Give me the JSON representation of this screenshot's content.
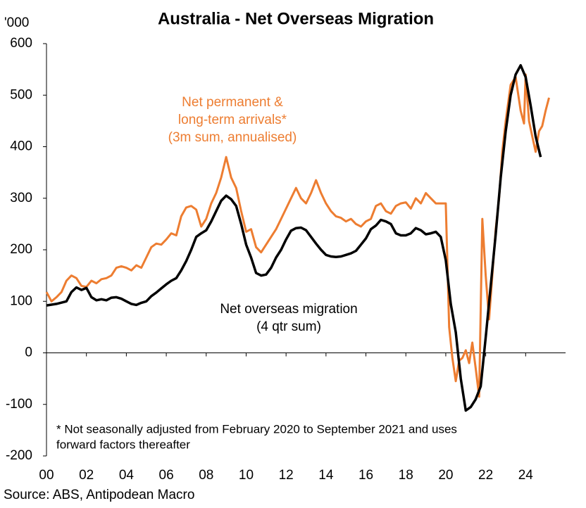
{
  "chart_data": {
    "type": "line",
    "title": "Australia - Net Overseas Migration",
    "y_unit_label": "'000",
    "source": "Source: ABS, Antipodean Macro",
    "footnote": [
      "* Not seasonally adjusted from February 2020 to September 2021 and uses",
      "forward factors thereafter"
    ],
    "annotations": [
      [
        "Net permanent &",
        "long-term arrivals*",
        "(3m sum, annualised)"
      ],
      [
        "Net overseas migration",
        "(4 qtr sum)"
      ]
    ],
    "xlim": [
      2000,
      2026
    ],
    "xticks": [
      {
        "value": 2000,
        "label": "00"
      },
      {
        "value": 2002,
        "label": "02"
      },
      {
        "value": 2004,
        "label": "04"
      },
      {
        "value": 2006,
        "label": "06"
      },
      {
        "value": 2008,
        "label": "08"
      },
      {
        "value": 2010,
        "label": "10"
      },
      {
        "value": 2012,
        "label": "12"
      },
      {
        "value": 2014,
        "label": "14"
      },
      {
        "value": 2016,
        "label": "16"
      },
      {
        "value": 2018,
        "label": "18"
      },
      {
        "value": 2020,
        "label": "20"
      },
      {
        "value": 2022,
        "label": "22"
      },
      {
        "value": 2024,
        "label": "24"
      }
    ],
    "ylim": [
      -200,
      600
    ],
    "yticks": [
      -200,
      -100,
      0,
      100,
      200,
      300,
      400,
      500,
      600
    ],
    "grid": false,
    "series": [
      {
        "name": "Net permanent & long-term arrivals* (3m sum, annualised)",
        "color": "#ed7d31",
        "x": [
          2000,
          2000.25,
          2000.5,
          2000.75,
          2001,
          2001.25,
          2001.5,
          2001.75,
          2002,
          2002.25,
          2002.5,
          2002.75,
          2003,
          2003.25,
          2003.5,
          2003.75,
          2004,
          2004.25,
          2004.5,
          2004.75,
          2005,
          2005.25,
          2005.5,
          2005.75,
          2006,
          2006.25,
          2006.5,
          2006.75,
          2007,
          2007.25,
          2007.5,
          2007.75,
          2008,
          2008.25,
          2008.5,
          2008.75,
          2009,
          2009.25,
          2009.5,
          2009.75,
          2010,
          2010.25,
          2010.5,
          2010.75,
          2011,
          2011.25,
          2011.5,
          2011.75,
          2012,
          2012.25,
          2012.5,
          2012.75,
          2013,
          2013.25,
          2013.5,
          2013.75,
          2014,
          2014.25,
          2014.5,
          2014.75,
          2015,
          2015.25,
          2015.5,
          2015.75,
          2016,
          2016.25,
          2016.5,
          2016.75,
          2017,
          2017.25,
          2017.5,
          2017.75,
          2018,
          2018.25,
          2018.5,
          2018.75,
          2019,
          2019.25,
          2019.5,
          2019.75,
          2020,
          2020.17,
          2020.33,
          2020.5,
          2020.67,
          2020.83,
          2021,
          2021.17,
          2021.33,
          2021.5,
          2021.67,
          2021.83,
          2022,
          2022.17,
          2022.33,
          2022.5,
          2022.67,
          2022.83,
          2023,
          2023.25,
          2023.5,
          2023.75,
          2023.92,
          2024,
          2024.17,
          2024.33,
          2024.5,
          2024.67,
          2024.83,
          2025,
          2025.17
        ],
        "values": [
          118,
          100,
          108,
          118,
          140,
          150,
          145,
          130,
          128,
          140,
          135,
          143,
          145,
          150,
          165,
          168,
          165,
          160,
          170,
          165,
          185,
          205,
          212,
          210,
          220,
          232,
          228,
          265,
          282,
          285,
          278,
          245,
          260,
          290,
          310,
          340,
          380,
          340,
          320,
          275,
          235,
          240,
          205,
          195,
          210,
          225,
          240,
          260,
          280,
          300,
          320,
          300,
          290,
          310,
          335,
          310,
          290,
          275,
          265,
          262,
          255,
          260,
          250,
          245,
          255,
          260,
          285,
          290,
          275,
          270,
          285,
          290,
          292,
          280,
          300,
          290,
          310,
          300,
          290,
          290,
          290,
          50,
          -10,
          -55,
          -15,
          -10,
          5,
          -20,
          20,
          -30,
          -85,
          260,
          150,
          65,
          150,
          240,
          300,
          390,
          450,
          520,
          535,
          470,
          445,
          540,
          450,
          420,
          390,
          430,
          440,
          470,
          495
        ]
      },
      {
        "name": "Net overseas migration (4 qtr sum)",
        "color": "#000000",
        "x": [
          2000,
          2000.5,
          2001,
          2001.25,
          2001.5,
          2001.75,
          2002,
          2002.25,
          2002.5,
          2002.75,
          2003,
          2003.25,
          2003.5,
          2003.75,
          2004,
          2004.25,
          2004.5,
          2004.75,
          2005,
          2005.25,
          2005.5,
          2005.75,
          2006,
          2006.25,
          2006.5,
          2006.75,
          2007,
          2007.25,
          2007.5,
          2007.75,
          2008,
          2008.25,
          2008.5,
          2008.75,
          2009,
          2009.25,
          2009.5,
          2009.75,
          2010,
          2010.25,
          2010.5,
          2010.75,
          2011,
          2011.25,
          2011.5,
          2011.75,
          2012,
          2012.25,
          2012.5,
          2012.75,
          2013,
          2013.25,
          2013.5,
          2013.75,
          2014,
          2014.25,
          2014.5,
          2014.75,
          2015,
          2015.25,
          2015.5,
          2015.75,
          2016,
          2016.25,
          2016.5,
          2016.75,
          2017,
          2017.25,
          2017.5,
          2017.75,
          2018,
          2018.25,
          2018.5,
          2018.75,
          2019,
          2019.25,
          2019.5,
          2019.75,
          2020,
          2020.25,
          2020.5,
          2020.75,
          2021,
          2021.25,
          2021.5,
          2021.75,
          2022,
          2022.25,
          2022.5,
          2022.75,
          2023,
          2023.25,
          2023.5,
          2023.75,
          2024,
          2024.25,
          2024.5,
          2024.75
        ],
        "values": [
          92,
          95,
          100,
          118,
          127,
          122,
          126,
          108,
          102,
          104,
          102,
          107,
          108,
          105,
          100,
          95,
          93,
          97,
          100,
          110,
          117,
          125,
          133,
          140,
          145,
          160,
          178,
          200,
          225,
          232,
          238,
          255,
          275,
          295,
          305,
          298,
          285,
          250,
          210,
          185,
          155,
          150,
          152,
          165,
          185,
          200,
          220,
          237,
          242,
          243,
          238,
          225,
          212,
          200,
          190,
          187,
          186,
          187,
          190,
          193,
          198,
          210,
          222,
          240,
          247,
          258,
          255,
          250,
          232,
          228,
          228,
          232,
          242,
          238,
          230,
          232,
          235,
          225,
          180,
          95,
          40,
          -50,
          -112,
          -105,
          -90,
          -65,
          30,
          130,
          230,
          340,
          430,
          500,
          540,
          558,
          535,
          480,
          420,
          380
        ]
      }
    ]
  }
}
